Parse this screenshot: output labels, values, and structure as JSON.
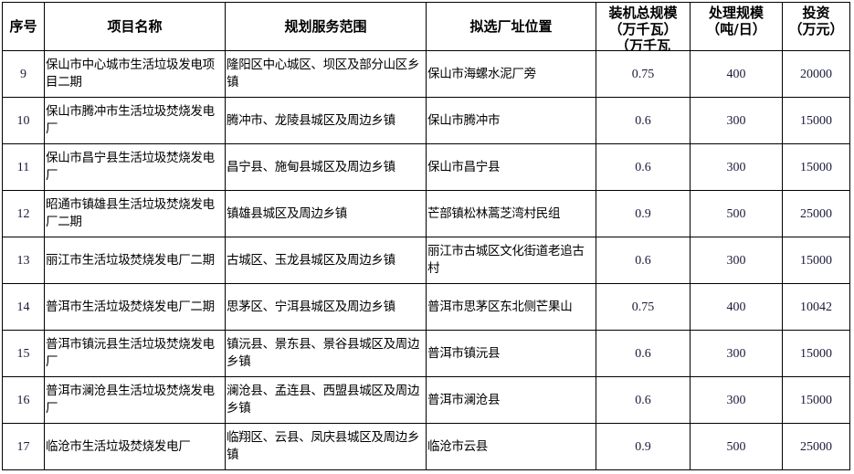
{
  "headers": {
    "no": "序号",
    "name": "项目名称",
    "scope": "规划服务范围",
    "site": "拟选厂址位置",
    "capacity": [
      "装机总规模",
      "（万千瓦）",
      "（万千瓦"
    ],
    "scale": [
      "处理规模",
      "（吨/日）"
    ],
    "invest": [
      "投资",
      "（万元）"
    ]
  },
  "rows": [
    {
      "no": "9",
      "name": "保山市中心城市生活垃圾发电项目二期",
      "scope": "隆阳区中心城区、坝区及部分山区乡镇",
      "site": "保山市海螺水泥厂旁",
      "capacity": "0.75",
      "scale": "400",
      "invest": "20000"
    },
    {
      "no": "10",
      "name": "保山市腾冲市生活垃圾焚烧发电厂",
      "scope": "腾冲市、龙陵县城区及周边乡镇",
      "site": "保山市腾冲市",
      "capacity": "0.6",
      "scale": "300",
      "invest": "15000"
    },
    {
      "no": "11",
      "name": "保山市昌宁县生活垃圾焚烧发电厂",
      "scope": "昌宁县、施甸县城区及周边乡镇",
      "site": "保山市昌宁县",
      "capacity": "0.6",
      "scale": "300",
      "invest": "15000"
    },
    {
      "no": "12",
      "name": "昭通市镇雄县生活垃圾焚烧发电厂二期",
      "scope": "镇雄县城区及周边乡镇",
      "site": "芒部镇松林蒿芝湾村民组",
      "capacity": "0.9",
      "scale": "500",
      "invest": "25000"
    },
    {
      "no": "13",
      "name": "丽江市生活垃圾焚烧发电厂二期",
      "scope": "古城区、玉龙县城区及周边乡镇",
      "site": "丽江市古城区文化街道老追古村",
      "capacity": "0.6",
      "scale": "300",
      "invest": "15000"
    },
    {
      "no": "14",
      "name": "普洱市生活垃圾焚烧发电厂二期",
      "scope": "思茅区、宁洱县城区及周边乡镇",
      "site": "普洱市思茅区东北侧芒果山",
      "capacity": "0.75",
      "scale": "400",
      "invest": "10042"
    },
    {
      "no": "15",
      "name": "普洱市镇沅县生活垃圾焚烧发电厂",
      "scope": "镇沅县、景东县、景谷县城区及周边乡镇",
      "site": "普洱市镇沅县",
      "capacity": "0.6",
      "scale": "300",
      "invest": "15000"
    },
    {
      "no": "16",
      "name": "普洱市澜沧县生活垃圾焚烧发电厂",
      "scope": "澜沧县、孟连县、西盟县城区及周边乡镇",
      "site": "普洱市澜沧县",
      "capacity": "0.6",
      "scale": "300",
      "invest": "15000"
    },
    {
      "no": "17",
      "name": "临沧市生活垃圾焚烧发电厂",
      "scope": "临翔区、云县、凤庆县城区及周边乡镇",
      "site": "临沧市云县",
      "capacity": "0.9",
      "scale": "500",
      "invest": "25000"
    }
  ]
}
